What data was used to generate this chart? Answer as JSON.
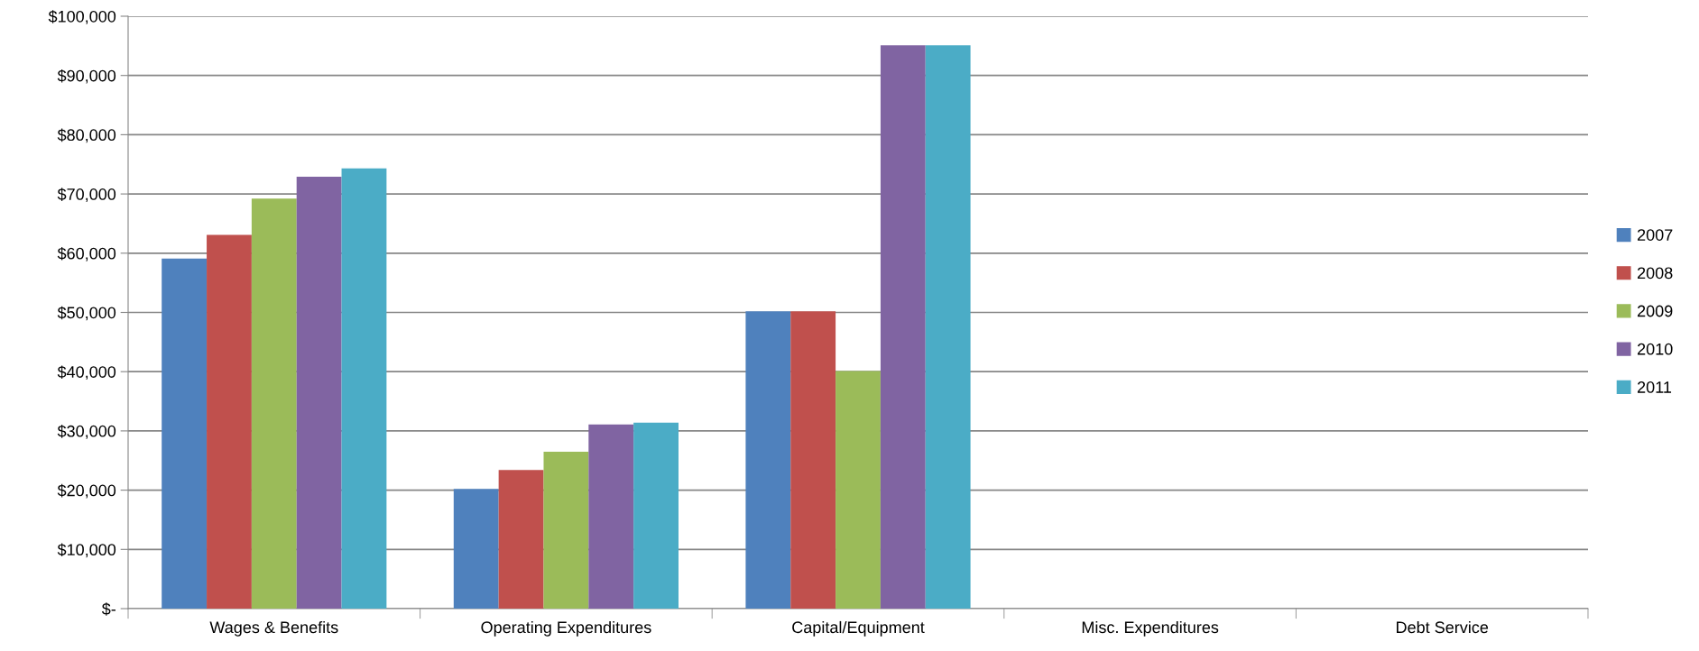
{
  "chart_data": {
    "type": "bar",
    "categories": [
      "Wages & Benefits",
      "Operating Expenditures",
      "Capital/Equipment",
      "Misc. Expenditures",
      "Debt Service"
    ],
    "series": [
      {
        "name": "2007",
        "color": "#4f81bd",
        "values": [
          59100,
          20200,
          50200,
          0,
          0
        ]
      },
      {
        "name": "2008",
        "color": "#c0504d",
        "values": [
          63100,
          23400,
          50200,
          0,
          0
        ]
      },
      {
        "name": "2009",
        "color": "#9bbb59",
        "values": [
          69200,
          26500,
          40100,
          0,
          0
        ]
      },
      {
        "name": "2010",
        "color": "#8064a2",
        "values": [
          72900,
          31100,
          95100,
          0,
          0
        ]
      },
      {
        "name": "2011",
        "color": "#4bacc6",
        "values": [
          74300,
          31400,
          95100,
          0,
          0
        ]
      }
    ],
    "ylim": [
      0,
      100000
    ],
    "yticks": [
      {
        "value": 0,
        "label": "$-"
      },
      {
        "value": 10000,
        "label": "$10,000"
      },
      {
        "value": 20000,
        "label": "$20,000"
      },
      {
        "value": 30000,
        "label": "$30,000"
      },
      {
        "value": 40000,
        "label": "$40,000"
      },
      {
        "value": 50000,
        "label": "$50,000"
      },
      {
        "value": 60000,
        "label": "$60,000"
      },
      {
        "value": 70000,
        "label": "$70,000"
      },
      {
        "value": 80000,
        "label": "$80,000"
      },
      {
        "value": 90000,
        "label": "$90,000"
      },
      {
        "value": 100000,
        "label": "$100,000"
      }
    ],
    "grid": "y",
    "legend": "right"
  }
}
